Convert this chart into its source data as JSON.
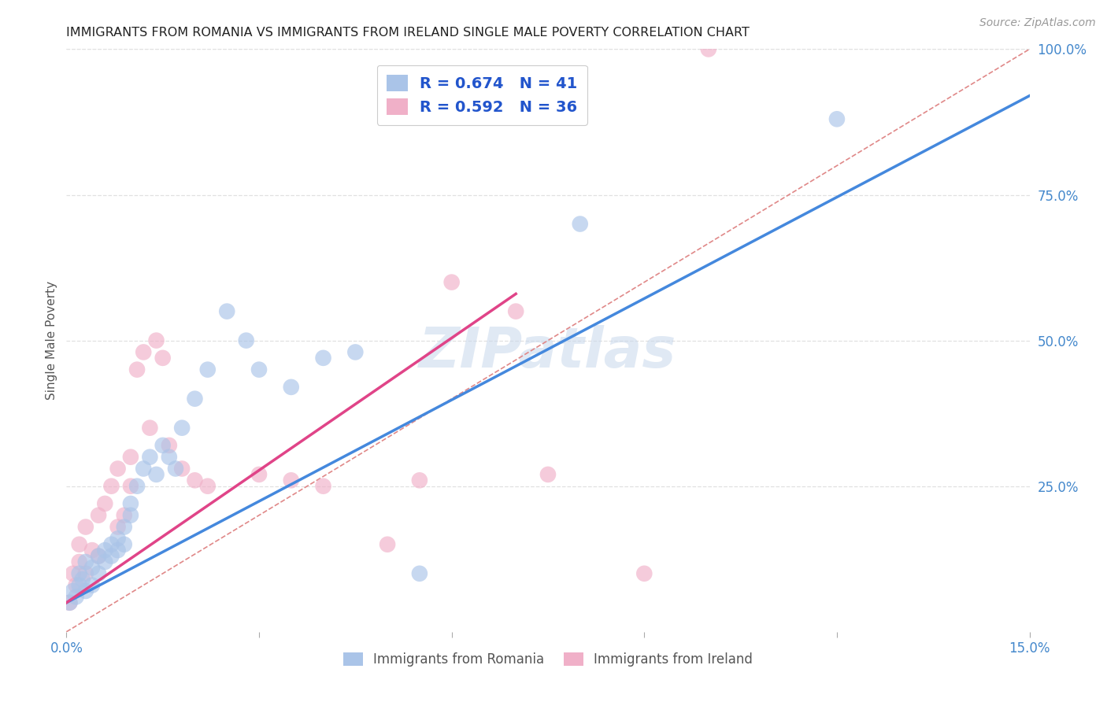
{
  "title": "IMMIGRANTS FROM ROMANIA VS IMMIGRANTS FROM IRELAND SINGLE MALE POVERTY CORRELATION CHART",
  "source": "Source: ZipAtlas.com",
  "ylabel": "Single Male Poverty",
  "xlim": [
    0.0,
    0.15
  ],
  "ylim": [
    0.0,
    1.0
  ],
  "background_color": "#ffffff",
  "grid_color": "#e0e0e0",
  "romania_color": "#aac4e8",
  "ireland_color": "#f0b0c8",
  "romania_R": 0.674,
  "romania_N": 41,
  "ireland_R": 0.592,
  "ireland_N": 36,
  "romania_line_color": "#4488dd",
  "ireland_line_color": "#e04488",
  "ref_line_color": "#e08888",
  "label_color_blue": "#4488cc",
  "watermark_color": "#c8d8ec",
  "legend_text_color": "#222222",
  "legend_rn_color": "#2255cc",
  "romania_scatter_x": [
    0.0005,
    0.001,
    0.0015,
    0.002,
    0.002,
    0.0025,
    0.003,
    0.003,
    0.004,
    0.004,
    0.005,
    0.005,
    0.006,
    0.006,
    0.007,
    0.007,
    0.008,
    0.008,
    0.009,
    0.009,
    0.01,
    0.01,
    0.011,
    0.012,
    0.013,
    0.014,
    0.015,
    0.016,
    0.017,
    0.018,
    0.02,
    0.022,
    0.025,
    0.028,
    0.03,
    0.035,
    0.04,
    0.045,
    0.055,
    0.08,
    0.12
  ],
  "romania_scatter_y": [
    0.05,
    0.07,
    0.06,
    0.08,
    0.1,
    0.09,
    0.07,
    0.12,
    0.08,
    0.11,
    0.1,
    0.13,
    0.14,
    0.12,
    0.15,
    0.13,
    0.16,
    0.14,
    0.18,
    0.15,
    0.2,
    0.22,
    0.25,
    0.28,
    0.3,
    0.27,
    0.32,
    0.3,
    0.28,
    0.35,
    0.4,
    0.45,
    0.55,
    0.5,
    0.45,
    0.42,
    0.47,
    0.48,
    0.1,
    0.7,
    0.88
  ],
  "ireland_scatter_x": [
    0.0005,
    0.001,
    0.0015,
    0.002,
    0.002,
    0.003,
    0.003,
    0.004,
    0.005,
    0.005,
    0.006,
    0.007,
    0.008,
    0.008,
    0.009,
    0.01,
    0.01,
    0.011,
    0.012,
    0.013,
    0.014,
    0.015,
    0.016,
    0.018,
    0.02,
    0.022,
    0.03,
    0.035,
    0.04,
    0.05,
    0.055,
    0.06,
    0.07,
    0.075,
    0.09,
    0.1
  ],
  "ireland_scatter_y": [
    0.05,
    0.1,
    0.08,
    0.12,
    0.15,
    0.1,
    0.18,
    0.14,
    0.2,
    0.13,
    0.22,
    0.25,
    0.18,
    0.28,
    0.2,
    0.3,
    0.25,
    0.45,
    0.48,
    0.35,
    0.5,
    0.47,
    0.32,
    0.28,
    0.26,
    0.25,
    0.27,
    0.26,
    0.25,
    0.15,
    0.26,
    0.6,
    0.55,
    0.27,
    0.1,
    1.0
  ],
  "romania_line_x0": 0.0,
  "romania_line_y0": 0.05,
  "romania_line_x1": 0.15,
  "romania_line_y1": 0.92,
  "ireland_line_x0": 0.0,
  "ireland_line_y0": 0.05,
  "ireland_line_x1": 0.07,
  "ireland_line_y1": 0.58
}
